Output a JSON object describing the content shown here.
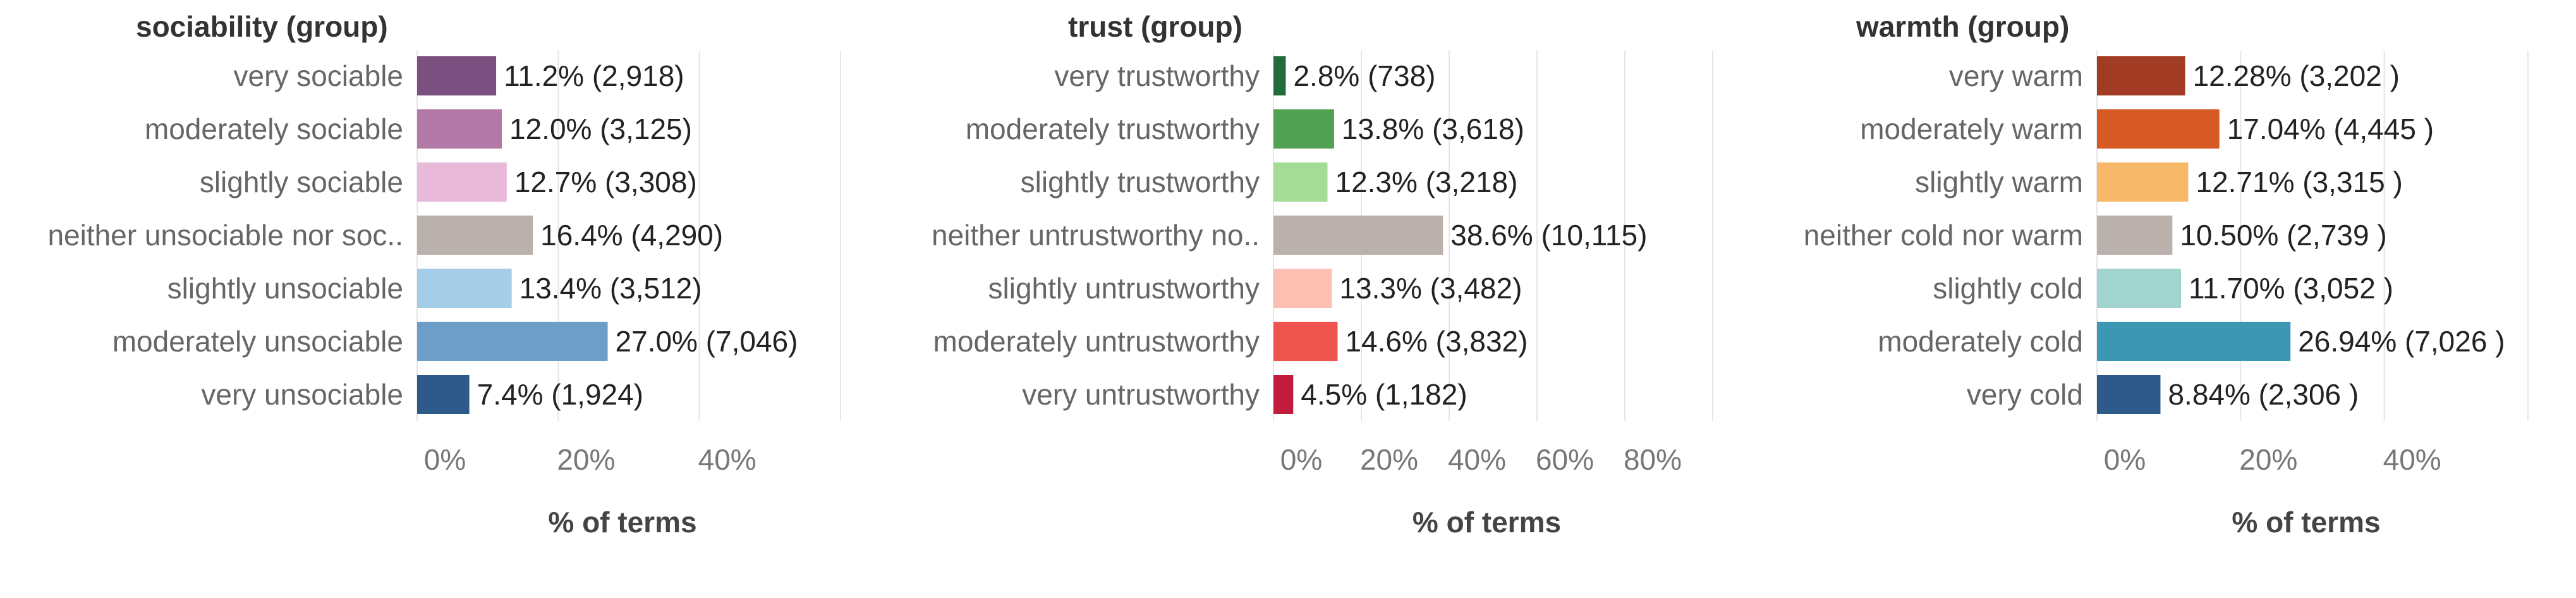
{
  "chart_data": [
    {
      "type": "bar",
      "orientation": "horizontal",
      "title": "sociability (group)",
      "xlabel": "% of terms",
      "xlim": [
        0,
        60
      ],
      "xticks": [
        "0%",
        "20%",
        "40%"
      ],
      "grid": true,
      "categories": [
        "very sociable",
        "moderately sociable",
        "slightly sociable",
        "neither unsociable nor soc..",
        "slightly unsociable",
        "moderately unsociable",
        "very unsociable"
      ],
      "values": [
        11.2,
        12.0,
        12.7,
        16.4,
        13.4,
        27.0,
        7.4
      ],
      "labels": [
        "11.2% (2,918)",
        "12.0% (3,125)",
        "12.7% (3,308)",
        "16.4% (4,290)",
        "13.4% (3,512)",
        "27.0% (7,046)",
        "7.4% (1,924)"
      ],
      "colors": [
        "#7b4f80",
        "#b279a7",
        "#e8b9d8",
        "#bab0ac",
        "#a6cde8",
        "#6d9ec7",
        "#2e5a8a"
      ]
    },
    {
      "type": "bar",
      "orientation": "horizontal",
      "title": "trust (group)",
      "xlabel": "% of terms",
      "xlim": [
        0,
        100
      ],
      "xticks": [
        "0%",
        "20%",
        "40%",
        "60%",
        "80%"
      ],
      "grid": true,
      "categories": [
        "very trustworthy",
        "moderately trustworthy",
        "slightly trustworthy",
        "neither untrustworthy no..",
        "slightly untrustworthy",
        "moderately untrustworthy",
        "very untrustworthy"
      ],
      "values": [
        2.8,
        13.8,
        12.3,
        38.6,
        13.3,
        14.6,
        4.5
      ],
      "labels": [
        "2.8% (738)",
        "13.8% (3,618)",
        "12.3% (3,218)",
        "38.6% (10,115)",
        "13.3% (3,482)",
        "14.6% (3,832)",
        "4.5% (1,182)"
      ],
      "colors": [
        "#236b3c",
        "#52a152",
        "#a5dc95",
        "#bab0ac",
        "#fdbfb2",
        "#ef534d",
        "#c11b3d"
      ]
    },
    {
      "type": "bar",
      "orientation": "horizontal",
      "title": "warmth (group)",
      "xlabel": "% of terms",
      "xlim": [
        0,
        60
      ],
      "xticks": [
        "0%",
        "20%",
        "40%"
      ],
      "grid": true,
      "categories": [
        "very warm",
        "moderately warm",
        "slightly warm",
        "neither cold nor warm",
        "slightly cold",
        "moderately cold",
        "very cold"
      ],
      "values": [
        12.28,
        17.04,
        12.71,
        10.5,
        11.7,
        26.94,
        8.84
      ],
      "labels": [
        "12.28% (3,202 )",
        "17.04% (4,445 )",
        "12.71% (3,315 )",
        "10.50% (2,739 )",
        "11.70% (3,052 )",
        "26.94% (7,026 )",
        "8.84% (2,306 )"
      ],
      "colors": [
        "#a23b24",
        "#d75a24",
        "#f8b86a",
        "#bab0ac",
        "#a2d4d0",
        "#3b97b4",
        "#2e5a8a"
      ]
    }
  ]
}
